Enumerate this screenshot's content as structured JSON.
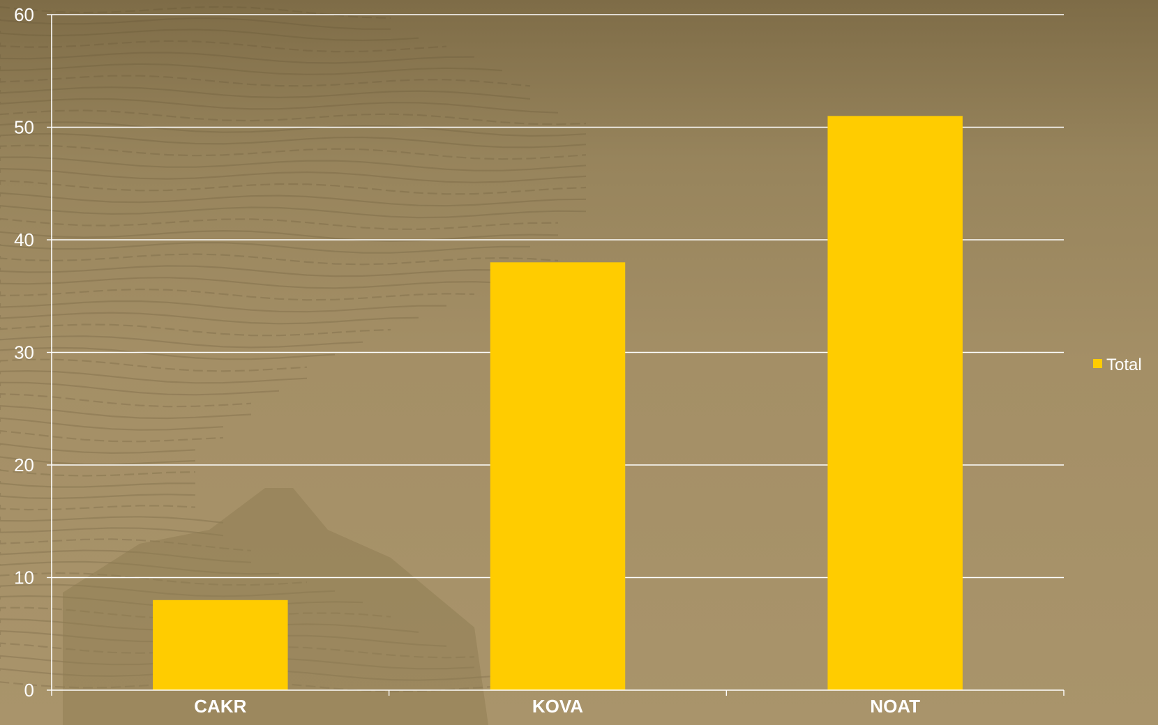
{
  "chart_data": {
    "type": "bar",
    "categories": [
      "CAKR",
      "KOVA",
      "NOAT"
    ],
    "series": [
      {
        "name": "Total",
        "values": [
          8,
          38,
          51
        ]
      }
    ],
    "ylim": [
      0,
      60
    ],
    "yticks": [
      0,
      10,
      20,
      30,
      40,
      50,
      60
    ],
    "grid": true,
    "legend_position": "right",
    "title": "",
    "xlabel": "",
    "ylabel": ""
  },
  "colors": {
    "bar": "#ffcc00",
    "grid": "#ffffff",
    "axis": "#ffffff",
    "text": "#ffffff"
  }
}
